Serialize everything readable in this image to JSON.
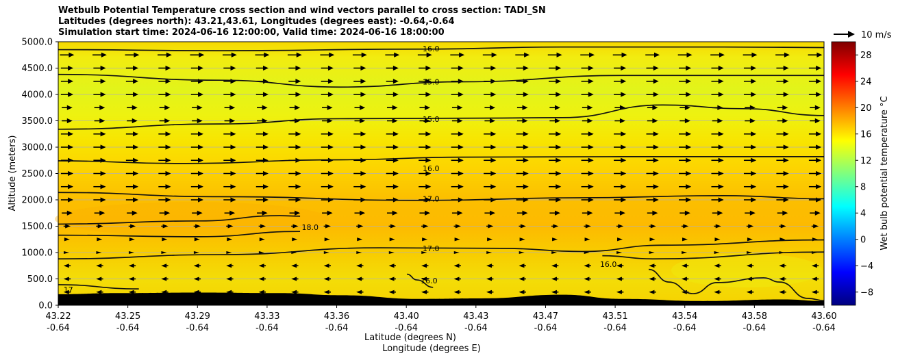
{
  "title": {
    "line1": "Wetbulb Potential Temperature cross section and wind vectors parallel to cross section: TADI_SN",
    "line2": "Latitudes (degrees north): 43.21,43.61, Longitudes (degrees east): -0.64,-0.64",
    "line3": "Simulation start time: 2024-06-16 12:00:00, Valid time: 2024-06-16 18:00:00"
  },
  "wind_key_label": "10 m/s",
  "colorbar_label": "Wet bulb potential temperature °C",
  "colormap_colors": [
    "#00007f",
    "#0000ff",
    "#007fff",
    "#00ffff",
    "#7fff7f",
    "#ffff00",
    "#ff7f00",
    "#ff0000",
    "#7f0000"
  ],
  "chart_data": {
    "type": "contour",
    "xlabel": "Latitude (degrees N)",
    "xlabel2": "Longitude (degrees E)",
    "ylabel": "Altitude (meters)",
    "ylim": [
      0,
      5000
    ],
    "y_ticks": [
      0,
      500,
      1000,
      1500,
      2000,
      2500,
      3000,
      3500,
      4000,
      4500,
      5000
    ],
    "y_tick_labels": [
      "0.0",
      "500.0",
      "1000.0",
      "1500.0",
      "2000.0",
      "2500.0",
      "3000.0",
      "3500.0",
      "4000.0",
      "4500.0",
      "5000.0"
    ],
    "x_ticks_lat": [
      "43.22",
      "43.25",
      "43.29",
      "43.33",
      "43.36",
      "43.40",
      "43.43",
      "43.47",
      "43.51",
      "43.54",
      "43.58",
      "43.60"
    ],
    "x_ticks_lon": [
      "-0.64",
      "-0.64",
      "-0.64",
      "-0.64",
      "-0.64",
      "-0.64",
      "-0.64",
      "-0.64",
      "-0.64",
      "-0.64",
      "-0.64",
      "-0.64"
    ],
    "colorbar_ticks": [
      -8,
      -4,
      0,
      4,
      8,
      12,
      16,
      20,
      24,
      28
    ],
    "colorbar_range": [
      -10,
      30
    ],
    "grid": true,
    "contour_labels": [
      {
        "text": "16.0",
        "lat": 43.405,
        "alt": 4870
      },
      {
        "text": "15.0",
        "lat": 43.405,
        "alt": 4240
      },
      {
        "text": "15.0",
        "lat": 43.405,
        "alt": 3530
      },
      {
        "text": "16.0",
        "lat": 43.405,
        "alt": 2600
      },
      {
        "text": "17.0",
        "lat": 43.405,
        "alt": 2020
      },
      {
        "text": "18.0",
        "lat": 43.345,
        "alt": 1480
      },
      {
        "text": "17.0",
        "lat": 43.405,
        "alt": 1080
      },
      {
        "text": "16.0",
        "lat": 43.493,
        "alt": 780
      },
      {
        "text": "16.0",
        "lat": 43.404,
        "alt": 470
      },
      {
        "text": "17",
        "lat": 43.225,
        "alt": 300
      }
    ],
    "contour_lines": [
      {
        "level": 16.0,
        "points": [
          [
            43.22,
            4850
          ],
          [
            43.3,
            4830
          ],
          [
            43.4,
            4860
          ],
          [
            43.47,
            4900
          ],
          [
            43.55,
            4900
          ],
          [
            43.6,
            4890
          ]
        ]
      },
      {
        "level": 15.0,
        "points": [
          [
            43.22,
            4380
          ],
          [
            43.3,
            4270
          ],
          [
            43.36,
            4140
          ],
          [
            43.42,
            4240
          ],
          [
            43.5,
            4360
          ],
          [
            43.6,
            4360
          ]
        ]
      },
      {
        "level": 15.0,
        "points": [
          [
            43.22,
            3340
          ],
          [
            43.3,
            3440
          ],
          [
            43.36,
            3540
          ],
          [
            43.43,
            3550
          ],
          [
            43.47,
            3560
          ],
          [
            43.52,
            3800
          ],
          [
            43.56,
            3730
          ],
          [
            43.6,
            3600
          ]
        ]
      },
      {
        "level": 16.0,
        "points": [
          [
            43.22,
            2740
          ],
          [
            43.28,
            2690
          ],
          [
            43.36,
            2760
          ],
          [
            43.42,
            2810
          ],
          [
            43.5,
            2820
          ],
          [
            43.6,
            2820
          ]
        ]
      },
      {
        "level": 17.0,
        "points": [
          [
            43.22,
            2140
          ],
          [
            43.3,
            2060
          ],
          [
            43.4,
            1990
          ],
          [
            43.48,
            2040
          ],
          [
            43.55,
            2080
          ],
          [
            43.6,
            2020
          ]
        ]
      },
      {
        "level": 18.0,
        "points": [
          [
            43.22,
            1540
          ],
          [
            43.29,
            1600
          ],
          [
            43.33,
            1700
          ],
          [
            43.34,
            1690
          ]
        ]
      },
      {
        "level": 18.0,
        "points": [
          [
            43.22,
            1330
          ],
          [
            43.29,
            1300
          ],
          [
            43.34,
            1400
          ]
        ]
      },
      {
        "level": 17.0,
        "points": [
          [
            43.22,
            880
          ],
          [
            43.3,
            960
          ],
          [
            43.38,
            1090
          ],
          [
            43.44,
            1080
          ],
          [
            43.48,
            1020
          ],
          [
            43.52,
            1140
          ],
          [
            43.6,
            1240
          ]
        ]
      },
      {
        "level": 16.0,
        "points": [
          [
            43.22,
            390
          ],
          [
            43.26,
            310
          ]
        ]
      },
      {
        "level": 16.0,
        "points": [
          [
            43.393,
            590
          ],
          [
            43.398,
            480
          ],
          [
            43.406,
            340
          ]
        ]
      },
      {
        "level": 16.0,
        "points": [
          [
            43.49,
            940
          ],
          [
            43.515,
            880
          ],
          [
            43.6,
            1010
          ]
        ]
      },
      {
        "level": 16.0,
        "points": [
          [
            43.513,
            680
          ],
          [
            43.523,
            440
          ],
          [
            43.535,
            220
          ],
          [
            43.547,
            430
          ],
          [
            43.57,
            520
          ],
          [
            43.578,
            440
          ],
          [
            43.592,
            130
          ],
          [
            43.6,
            90
          ]
        ]
      }
    ],
    "terrain": [
      [
        43.22,
        210
      ],
      [
        43.25,
        230
      ],
      [
        43.29,
        240
      ],
      [
        43.33,
        230
      ],
      [
        43.36,
        190
      ],
      [
        43.4,
        120
      ],
      [
        43.43,
        130
      ],
      [
        43.47,
        200
      ],
      [
        43.5,
        120
      ],
      [
        43.54,
        80
      ],
      [
        43.58,
        110
      ],
      [
        43.6,
        80
      ]
    ],
    "wind_rows_alt": [
      4750,
      4500,
      4250,
      4000,
      3750,
      3500,
      3250,
      3000,
      2750,
      2500,
      2250,
      2000,
      1750,
      1500,
      1250,
      1000,
      750,
      500,
      250
    ],
    "wind_rows_speed": [
      8,
      7,
      7,
      7,
      6,
      6,
      7,
      7,
      7,
      7,
      7,
      7,
      6,
      4,
      3,
      1,
      -4,
      -4,
      -4
    ]
  }
}
